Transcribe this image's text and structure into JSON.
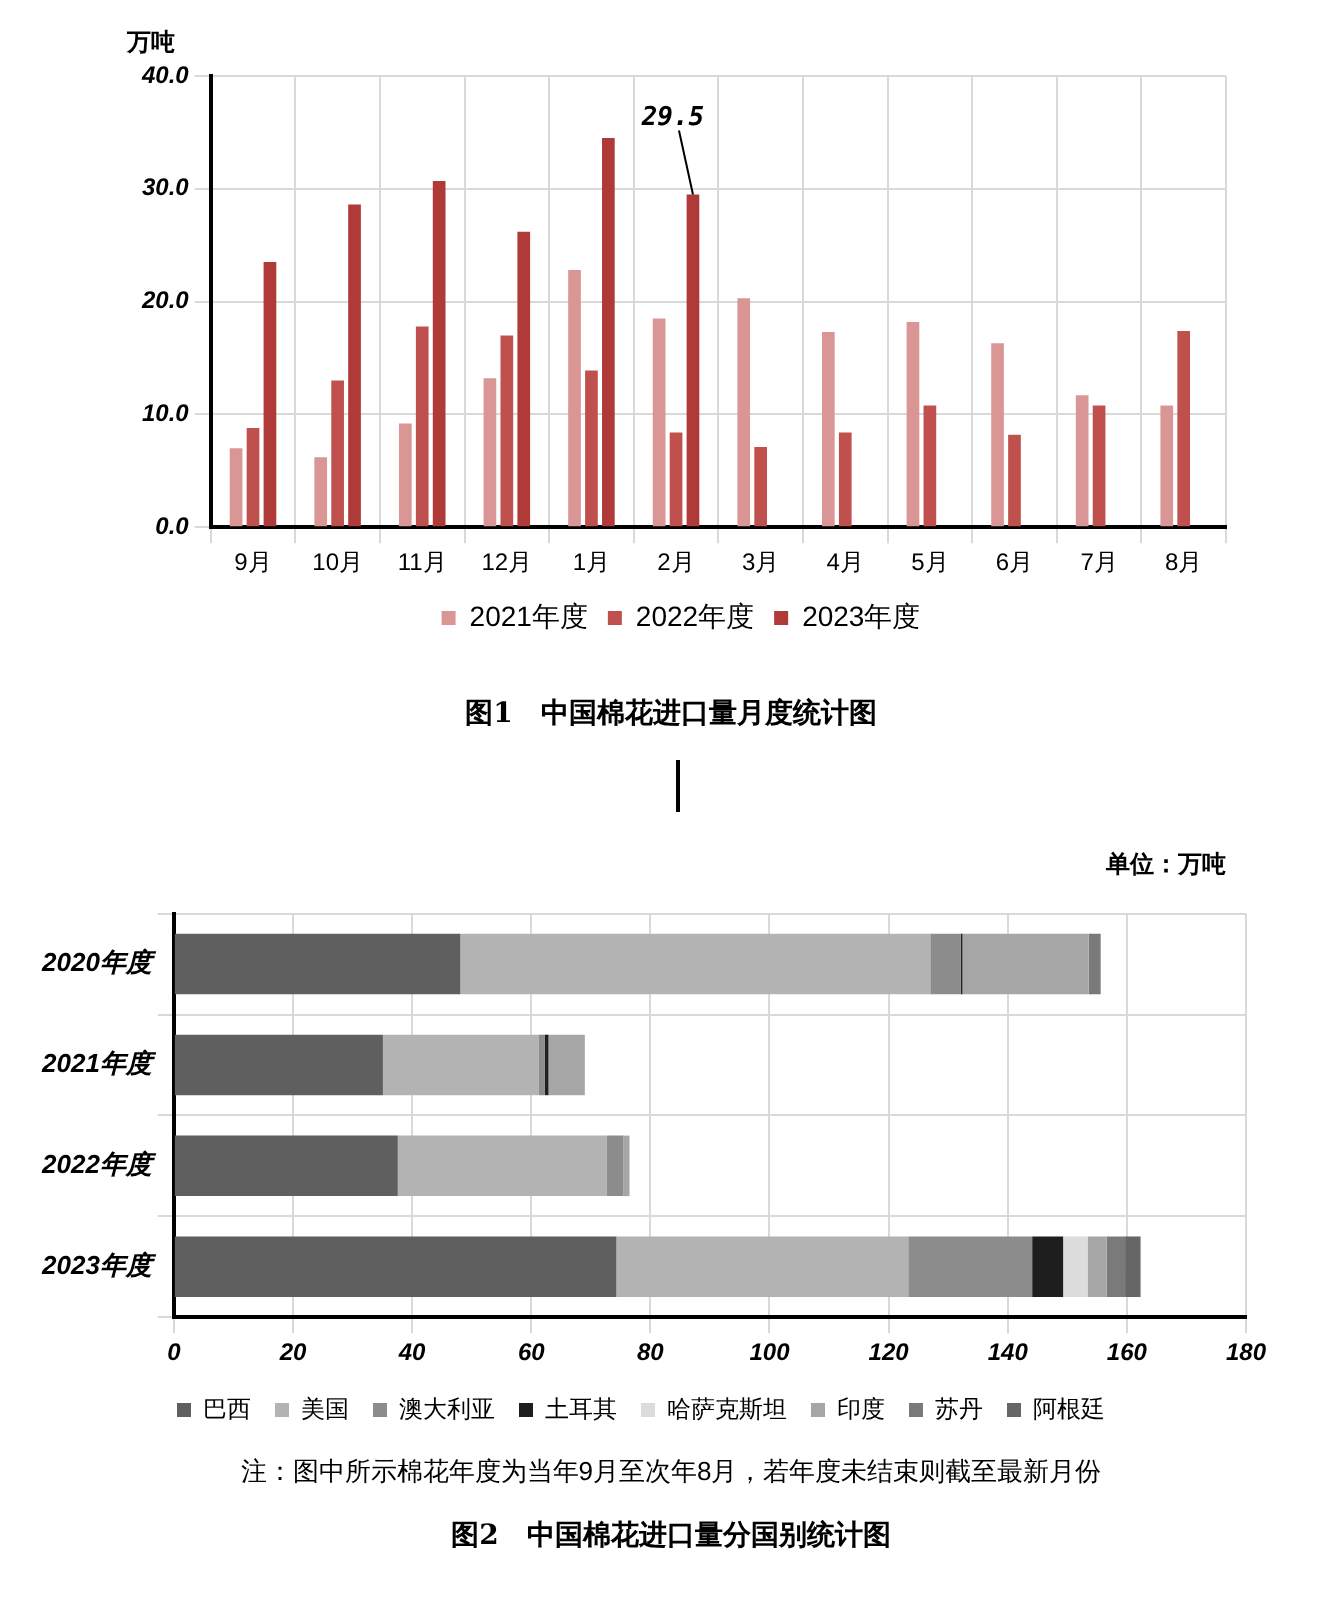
{
  "chart_data": [
    {
      "type": "bar",
      "title": "图1　中国棉花进口量月度统计图",
      "ylabel": "万吨",
      "categories": [
        "9月",
        "10月",
        "11月",
        "12月",
        "1月",
        "2月",
        "3月",
        "4月",
        "5月",
        "6月",
        "7月",
        "8月"
      ],
      "series": [
        {
          "name": "2021年度",
          "color": "#d99694",
          "values": [
            7.0,
            6.2,
            9.2,
            13.2,
            22.8,
            18.5,
            20.3,
            17.3,
            18.2,
            16.3,
            11.7,
            10.8
          ]
        },
        {
          "name": "2022年度",
          "color": "#c0504d",
          "values": [
            8.8,
            13.0,
            17.8,
            17.0,
            13.9,
            8.4,
            7.1,
            8.4,
            10.8,
            8.2,
            10.8,
            17.4
          ]
        },
        {
          "name": "2023年度",
          "color": "#b03a37",
          "values": [
            23.5,
            28.6,
            30.7,
            26.2,
            34.5,
            29.5,
            null,
            null,
            null,
            null,
            null,
            null
          ],
          "value_labels": [
            null,
            null,
            null,
            null,
            null,
            "29.5",
            null,
            null,
            null,
            null,
            null,
            null
          ]
        }
      ],
      "ylim": [
        0,
        40
      ],
      "yticks": [
        {
          "value": 0,
          "label": "0.0"
        },
        {
          "value": 10,
          "label": "10.0"
        },
        {
          "value": 20,
          "label": "20.0"
        },
        {
          "value": 30,
          "label": "30.0"
        },
        {
          "value": 40,
          "label": "40.0"
        }
      ],
      "grid": true,
      "legend": "bottom"
    },
    {
      "type": "bar",
      "orientation": "horizontal",
      "stacked": true,
      "title": "图2　中国棉花进口量分国别统计图",
      "subtitle": "单位：万吨",
      "categories": [
        "2020年度",
        "2021年度",
        "2022年度",
        "2023年度"
      ],
      "series": [
        {
          "name": "巴西",
          "color": "#5f5f5f",
          "values": [
            48.1,
            35.1,
            37.6,
            74.3
          ]
        },
        {
          "name": "美国",
          "color": "#b3b3b3",
          "values": [
            78.9,
            26.2,
            35.1,
            49.0
          ]
        },
        {
          "name": "澳大利亚",
          "color": "#8c8c8c",
          "values": [
            5.1,
            1.0,
            2.8,
            20.8
          ]
        },
        {
          "name": "土耳其",
          "color": "#1e1e1e",
          "values": [
            0.3,
            0.6,
            null,
            5.2
          ]
        },
        {
          "name": "哈萨克斯坦",
          "color": "#dcdcdc",
          "values": [
            null,
            null,
            null,
            4.1
          ]
        },
        {
          "name": "印度",
          "color": "#a6a6a6",
          "values": [
            21.2,
            6.1,
            1.0,
            3.2
          ]
        },
        {
          "name": "苏丹",
          "color": "#7a7a7a",
          "values": [
            2.0,
            null,
            null,
            3.1
          ]
        },
        {
          "name": "阿根廷",
          "color": "#666666",
          "values": [
            null,
            null,
            null,
            2.6
          ]
        }
      ],
      "xlim": [
        0,
        180
      ],
      "xticks": [
        0,
        20,
        40,
        60,
        80,
        100,
        120,
        140,
        160,
        180
      ],
      "annotations": [
        "注：图中所示棉花年度为当年9月至次年8月，若年度未结束则截至最新月份"
      ],
      "grid": true,
      "legend": "bottom"
    }
  ]
}
